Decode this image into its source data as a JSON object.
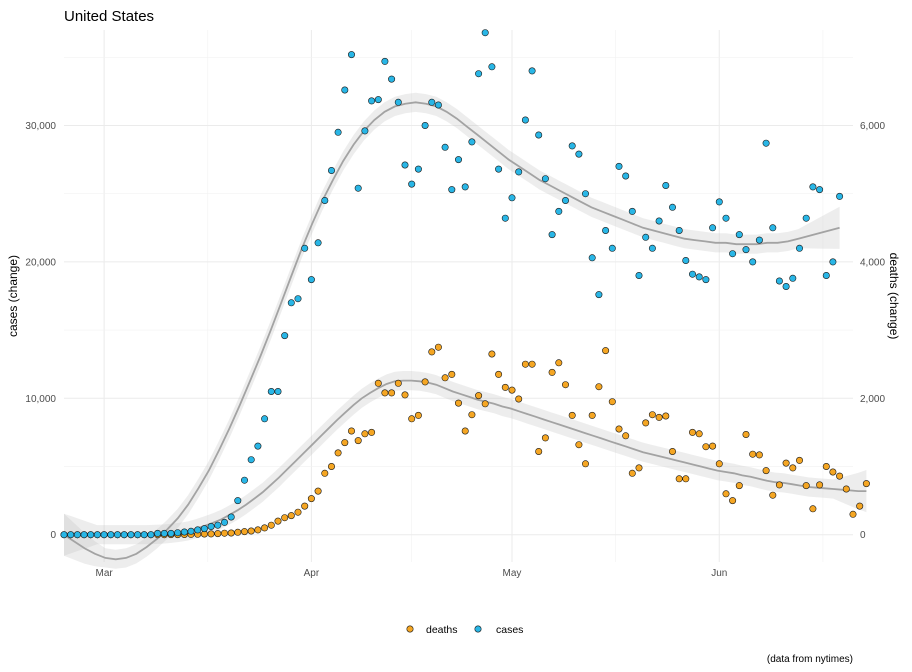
{
  "chart_data": {
    "type": "scatter",
    "title": "United States",
    "ylabel": "cases (change)",
    "y2label": "deaths (change)",
    "caption": "(data from nytimes)",
    "x_ticks": [
      {
        "date": "2020-03-01",
        "label": "Mar"
      },
      {
        "date": "2020-04-01",
        "label": "Apr"
      },
      {
        "date": "2020-05-01",
        "label": "May"
      },
      {
        "date": "2020-06-01",
        "label": "Jun"
      }
    ],
    "xlim": [
      "2020-02-24",
      "2020-06-21"
    ],
    "ylim": [
      -2000,
      37000
    ],
    "y_ticks": [
      0,
      10000,
      20000,
      30000
    ],
    "y_tick_labels": [
      "0",
      "10,000",
      "20,000",
      "30,000"
    ],
    "y2lim": [
      -400,
      7400
    ],
    "y2_ticks": [
      0,
      2000,
      4000,
      6000
    ],
    "y2_tick_labels": [
      "0",
      "2,000",
      "4,000",
      "6,000"
    ],
    "grid": true,
    "legend_position": "bottom",
    "start_date": "2020-02-24",
    "series": [
      {
        "name": "deaths",
        "axis": "right",
        "color": "#f5a623",
        "values": [
          0,
          0,
          0,
          0,
          0,
          0,
          0,
          0,
          0,
          0,
          0,
          0,
          0,
          0,
          0,
          0,
          2,
          2,
          3,
          5,
          6,
          10,
          12,
          17,
          22,
          25,
          35,
          45,
          55,
          70,
          100,
          140,
          200,
          250,
          280,
          330,
          420,
          530,
          640,
          900,
          1000,
          1200,
          1350,
          1520,
          1380,
          1480,
          1500,
          2220,
          2080,
          2080,
          2220,
          2050,
          1700,
          1750,
          2240,
          2680,
          2750,
          2300,
          2350,
          1930,
          1520,
          1760,
          2040,
          1920,
          2650,
          2350,
          2160,
          2120,
          1990,
          2500,
          2500,
          1220,
          1420,
          2380,
          2520,
          2200,
          1750,
          1320,
          1040,
          1750,
          2170,
          2700,
          1950,
          1550,
          1450,
          900,
          980,
          1640,
          1760,
          1720,
          1740,
          1220,
          820,
          820,
          1500,
          1480,
          1290,
          1300,
          1040,
          600,
          500,
          720,
          1470,
          1180,
          1170,
          940,
          580,
          730,
          1050,
          980,
          1090,
          720,
          380,
          730,
          1000,
          920,
          860,
          670,
          300,
          420,
          750
        ],
        "smooth": [
          0,
          0,
          0,
          0,
          0,
          0,
          0,
          0,
          0,
          0,
          0,
          5,
          10,
          20,
          35,
          55,
          90,
          130,
          175,
          225,
          290,
          360,
          440,
          530,
          620,
          730,
          840,
          960,
          1080,
          1200,
          1320,
          1440,
          1560,
          1680,
          1790,
          1900,
          2000,
          2080,
          2150,
          2210,
          2250,
          2260,
          2260,
          2250,
          2230,
          2200,
          2150,
          2100,
          2060,
          2020,
          1980,
          1950,
          1920,
          1880,
          1850,
          1810,
          1770,
          1730,
          1690,
          1650,
          1610,
          1570,
          1530,
          1490,
          1450,
          1410,
          1370,
          1330,
          1290,
          1250,
          1210,
          1180,
          1150,
          1120,
          1090,
          1060,
          1030,
          1000,
          970,
          940,
          920,
          900,
          870,
          850,
          820,
          790,
          770,
          760,
          740,
          720,
          700,
          690,
          680,
          670,
          660,
          650,
          640,
          640
        ]
      },
      {
        "name": "cases",
        "axis": "left",
        "color": "#29b6e6",
        "values": [
          0,
          0,
          0,
          0,
          0,
          0,
          0,
          0,
          0,
          0,
          0,
          0,
          0,
          0,
          100,
          100,
          100,
          150,
          200,
          250,
          350,
          450,
          600,
          700,
          900,
          1300,
          2500,
          4000,
          5500,
          6500,
          8500,
          10500,
          10500,
          14600,
          17000,
          17300,
          21000,
          18700,
          21400,
          24500,
          26700,
          29500,
          32600,
          35200,
          25400,
          29600,
          31800,
          31900,
          34700,
          33400,
          31700,
          27100,
          25700,
          26800,
          30000,
          31700,
          31500,
          28400,
          25300,
          27500,
          25500,
          28800,
          33800,
          36800,
          34300,
          26800,
          23200,
          24700,
          26600,
          30400,
          34000,
          29300,
          26100,
          22000,
          23700,
          24500,
          28500,
          27900,
          25000,
          20300,
          17600,
          22300,
          21000,
          27000,
          26300,
          23700,
          19000,
          21800,
          21000,
          23000,
          25600,
          24000,
          22300,
          20100,
          19100,
          18900,
          18700,
          22500,
          24400,
          23200,
          20600,
          22000,
          20900,
          20000,
          21600,
          28700,
          22500,
          18600,
          18200,
          18800,
          21000,
          23200,
          25500,
          25300,
          19000,
          20000,
          24800
        ],
        "smooth": [
          0,
          -500,
          -1000,
          -1400,
          -1700,
          -1800,
          -1700,
          -1400,
          -900,
          -300,
          400,
          1200,
          2200,
          3400,
          4700,
          6200,
          7800,
          9500,
          11300,
          13100,
          15000,
          17000,
          19000,
          21000,
          22800,
          24500,
          26000,
          27400,
          28600,
          29600,
          30400,
          31000,
          31400,
          31600,
          31700,
          31600,
          31400,
          31000,
          30500,
          29900,
          29300,
          28700,
          28100,
          27500,
          27000,
          26500,
          26000,
          25600,
          25200,
          24800,
          24400,
          24000,
          23700,
          23400,
          23100,
          22800,
          22500,
          22300,
          22100,
          21900,
          21700,
          21600,
          21500,
          21400,
          21400,
          21300,
          21300,
          21300,
          21400,
          21400,
          21500,
          21700,
          21900,
          22100,
          22300,
          22500
        ]
      }
    ]
  }
}
